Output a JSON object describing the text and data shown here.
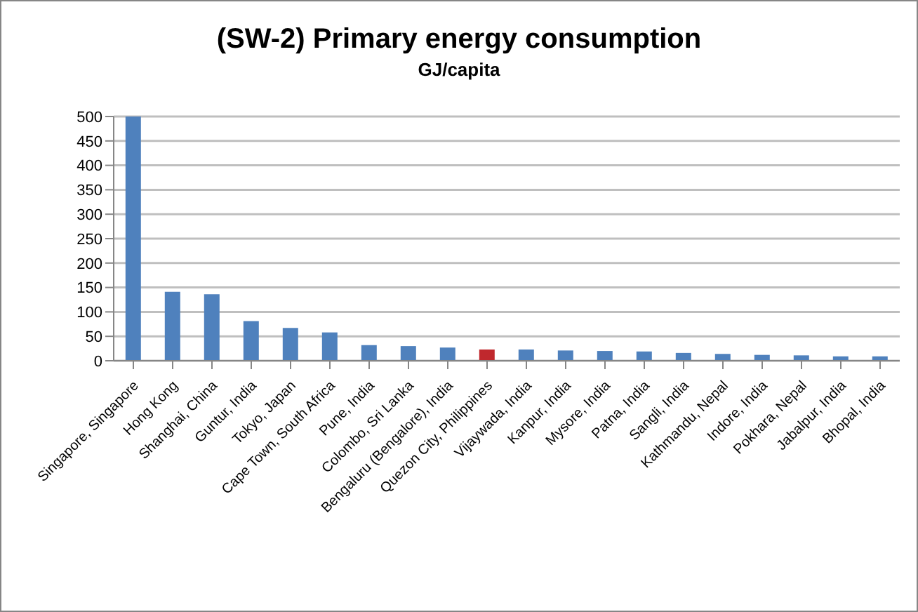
{
  "chart_data": {
    "type": "bar",
    "title": "(SW-2) Primary energy consumption",
    "subtitle": "GJ/capita",
    "categories": [
      "Singapore, Singapore",
      "Hong Kong",
      "Shanghai, China",
      "Guntur, India",
      "Tokyo, Japan",
      "Cape Town, South Africa",
      "Pune, India",
      "Colombo, Sri Lanka",
      "Bengaluru (Bengalore), India",
      "Quezon City, Philippines",
      "Vijaywada, India",
      "Kanpur, India",
      "Mysore, India",
      "Patna, India",
      "Sangli, India",
      "Kathmandu, Nepal",
      "Indore, India",
      "Pokhara, Nepal",
      "Jabalpur, India",
      "Bhopal, India"
    ],
    "values": [
      500,
      141,
      136,
      81,
      67,
      58,
      32,
      30,
      27,
      23,
      23,
      21,
      20,
      19,
      16,
      14,
      12,
      11,
      9,
      9
    ],
    "colors": [
      "#4f81bd",
      "#4f81bd",
      "#4f81bd",
      "#4f81bd",
      "#4f81bd",
      "#4f81bd",
      "#4f81bd",
      "#4f81bd",
      "#4f81bd",
      "#c0282d",
      "#4f81bd",
      "#4f81bd",
      "#4f81bd",
      "#4f81bd",
      "#4f81bd",
      "#4f81bd",
      "#4f81bd",
      "#4f81bd",
      "#4f81bd",
      "#4f81bd"
    ],
    "ylim": [
      0,
      500
    ],
    "yticks": [
      0,
      50,
      100,
      150,
      200,
      250,
      300,
      350,
      400,
      450,
      500
    ],
    "grid": "y",
    "legend": false
  }
}
